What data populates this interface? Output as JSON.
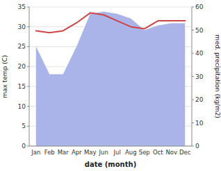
{
  "chart_data": {
    "type": "line",
    "categories": [
      "Jan",
      "Feb",
      "Mar",
      "Apr",
      "May",
      "Jun",
      "Jul",
      "Aug",
      "Sep",
      "Oct",
      "Nov",
      "Dec"
    ],
    "series": [
      {
        "type": "area",
        "axis": "y2",
        "color": "#aab4e8",
        "values": [
          43,
          31,
          31,
          43,
          57,
          58,
          57,
          55,
          50,
          52,
          53,
          53
        ]
      },
      {
        "type": "line",
        "color": "#cc4444",
        "values": [
          29.0,
          28.5,
          29.0,
          31.0,
          33.5,
          33.0,
          31.5,
          30.0,
          29.5,
          31.5,
          31.5,
          31.5
        ]
      }
    ],
    "x_label": "date (month)",
    "y_label": "max temp (C)",
    "y2_label": "med. precipitation (kg/m2)",
    "ylim": [
      0,
      35
    ],
    "yticks": [
      0,
      5,
      10,
      15,
      20,
      25,
      30,
      35
    ],
    "y2lim": [
      0,
      60
    ],
    "y2ticks": [
      0,
      10,
      20,
      30,
      40,
      50,
      60
    ],
    "grid": true
  }
}
